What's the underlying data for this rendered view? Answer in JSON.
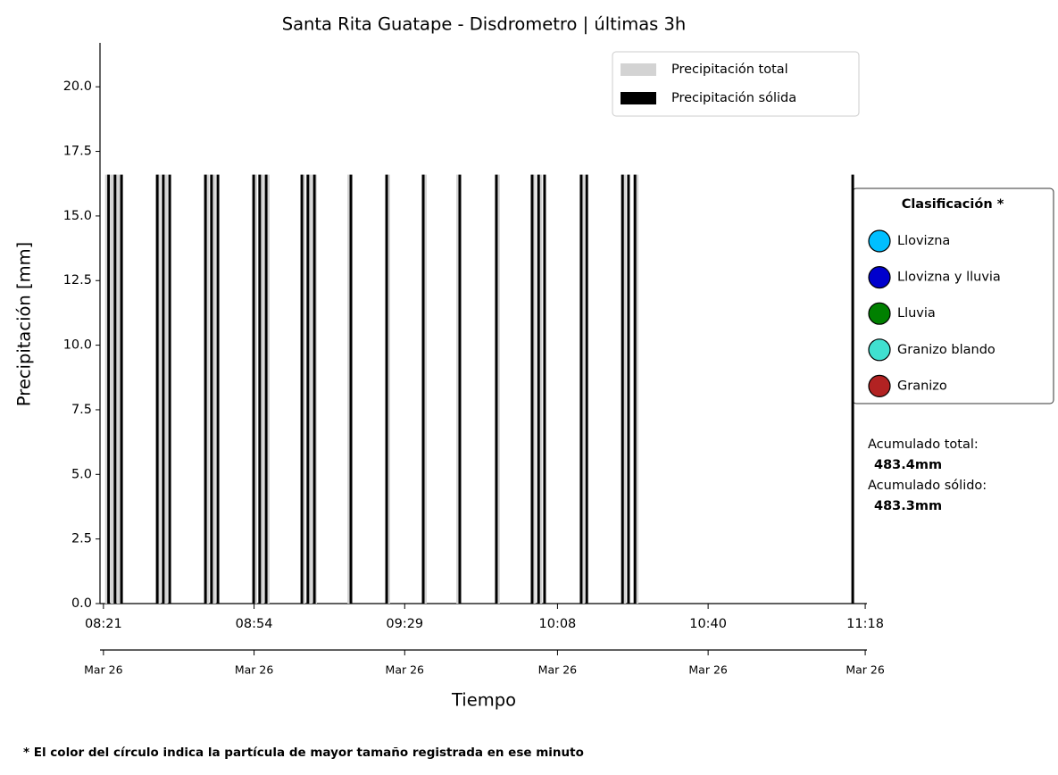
{
  "chart_data": {
    "type": "bar",
    "title": "Santa Rita Guatape - Disdrometro  |  últimas 3h",
    "xlabel": "Tiempo",
    "ylabel": "Precipitación [mm]",
    "xlim": [
      -0.8,
      177.4
    ],
    "ylim": [
      0,
      21.7
    ],
    "xticks": [
      {
        "value": 0,
        "label": "08:21",
        "date": "Mar 26"
      },
      {
        "value": 35,
        "label": "08:54",
        "date": "Mar 26"
      },
      {
        "value": 70,
        "label": "09:29",
        "date": "Mar 26"
      },
      {
        "value": 105.5,
        "label": "10:08",
        "date": "Mar 26"
      },
      {
        "value": 140.5,
        "label": "10:40",
        "date": "Mar 26"
      },
      {
        "value": 177,
        "label": "11:18",
        "date": "Mar 26"
      }
    ],
    "yticks": [
      {
        "value": 0,
        "label": "0.0"
      },
      {
        "value": 2.5,
        "label": "2.5"
      },
      {
        "value": 5,
        "label": "5.0"
      },
      {
        "value": 7.5,
        "label": "7.5"
      },
      {
        "value": 10,
        "label": "10.0"
      },
      {
        "value": 12.5,
        "label": "12.5"
      },
      {
        "value": 15,
        "label": "15.0"
      },
      {
        "value": 17.5,
        "label": "17.5"
      },
      {
        "value": 20,
        "label": "20.0"
      }
    ],
    "legend_position": "upper right",
    "series": [
      {
        "name": "Precipitación total",
        "color": "#d3d3d3",
        "x": [
          0.8,
          2.1,
          3.5,
          12.9,
          14.5,
          24.1,
          25.7,
          35.3,
          36.9,
          38.2,
          46.5,
          48.1,
          49.2,
          57.1,
          66.2,
          74.7,
          82.4,
          91.7,
          100.0,
          101.5,
          111.4,
          121.0,
          123.9
        ],
        "values": [
          16.6,
          16.6,
          16.6,
          16.6,
          16.6,
          16.6,
          16.6,
          16.6,
          16.6,
          16.6,
          16.6,
          16.6,
          16.6,
          16.6,
          16.6,
          16.6,
          16.6,
          16.6,
          16.6,
          16.6,
          16.6,
          16.6,
          16.6
        ]
      },
      {
        "name": "Precipitación sólida",
        "color": "#000000",
        "x": [
          1.2,
          2.7,
          4.2,
          12.5,
          13.9,
          15.4,
          23.7,
          25.1,
          26.6,
          34.9,
          36.3,
          37.8,
          46.1,
          47.5,
          49.0,
          57.5,
          65.8,
          74.3,
          82.8,
          91.3,
          99.6,
          101.1,
          102.5,
          111.0,
          112.3,
          120.6,
          122.0,
          123.5,
          174.1
        ],
        "values": [
          16.6,
          16.6,
          16.6,
          16.6,
          16.6,
          16.6,
          16.6,
          16.6,
          16.6,
          16.6,
          16.6,
          16.6,
          16.6,
          16.6,
          16.6,
          16.6,
          16.6,
          16.6,
          16.6,
          16.6,
          16.6,
          16.6,
          16.6,
          16.6,
          16.6,
          16.6,
          16.6,
          16.6,
          16.6
        ]
      }
    ],
    "classification": {
      "title": "Clasificación *",
      "items": [
        {
          "name": "Llovizna",
          "color": "#00bfff"
        },
        {
          "name": "Llovizna y lluvia",
          "color": "#0000cd"
        },
        {
          "name": "Lluvia",
          "color": "#008000"
        },
        {
          "name": "Granizo blando",
          "color": "#40e0d0"
        },
        {
          "name": "Granizo",
          "color": "#b22222"
        }
      ]
    },
    "accumulated": {
      "total_label": "Acumulado total:",
      "total": "483.4mm",
      "solid_label": "Acumulado sólido:",
      "solid": "483.3mm"
    },
    "footnote": "* El color del círculo indica la partícula de mayor tamaño registrada en ese minuto"
  }
}
